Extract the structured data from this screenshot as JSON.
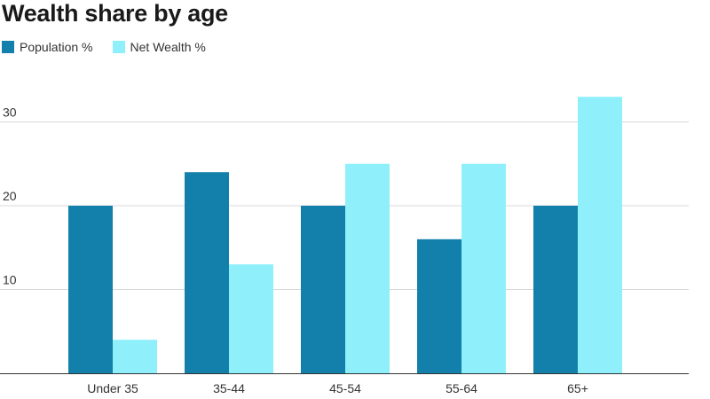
{
  "chart_data": {
    "type": "bar",
    "title": "Wealth share by age",
    "xlabel": "",
    "ylabel": "",
    "categories": [
      "Under 35",
      "35-44",
      "45-54",
      "55-64",
      "65+"
    ],
    "series": [
      {
        "name": "Population %",
        "values": [
          20,
          24,
          20,
          16,
          20
        ],
        "color": "#1380ab"
      },
      {
        "name": "Net Wealth %",
        "values": [
          4,
          13,
          25,
          25,
          33
        ],
        "color": "#8ff0fb"
      }
    ],
    "ylim": [
      0,
      35
    ],
    "yticks": [
      10,
      20,
      30
    ],
    "grid": true,
    "legend_position": "top-left"
  }
}
